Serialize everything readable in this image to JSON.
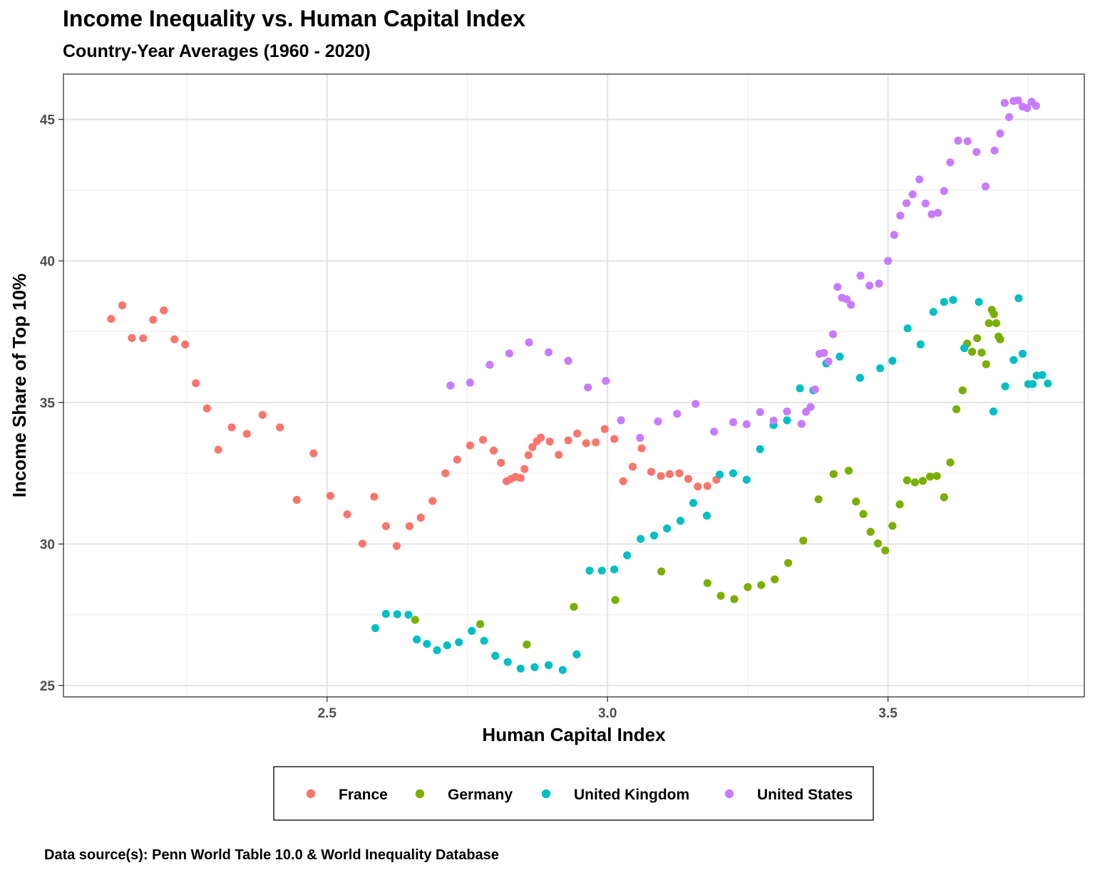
{
  "chart_data": {
    "type": "scatter",
    "title": "Income Inequality vs. Human Capital Index",
    "subtitle": "Country-Year Averages (1960 - 2020)",
    "xlabel": "Human Capital Index",
    "ylabel": "Income Share of Top 10%",
    "xlim": [
      2.03,
      3.85
    ],
    "ylim": [
      24.6,
      46.6
    ],
    "x_ticks": [
      "2.5",
      "3.0",
      "3.5"
    ],
    "y_ticks": [
      "25",
      "30",
      "35",
      "40",
      "45"
    ],
    "grid": true,
    "legend_position": "bottom",
    "caption": "Data source(s): Penn World Table 10.0 & World Inequality Database",
    "series": [
      {
        "name": "France",
        "color": "#F8766D",
        "points": [
          [
            2.115,
            37.95
          ],
          [
            2.135,
            38.43
          ],
          [
            2.152,
            37.28
          ],
          [
            2.172,
            37.27
          ],
          [
            2.19,
            37.92
          ],
          [
            2.209,
            38.25
          ],
          [
            2.228,
            37.23
          ],
          [
            2.247,
            37.05
          ],
          [
            2.266,
            35.68
          ],
          [
            2.286,
            34.79
          ],
          [
            2.306,
            33.33
          ],
          [
            2.33,
            34.12
          ],
          [
            2.357,
            33.89
          ],
          [
            2.385,
            34.56
          ],
          [
            2.416,
            34.12
          ],
          [
            2.446,
            31.56
          ],
          [
            2.476,
            33.2
          ],
          [
            2.506,
            31.7
          ],
          [
            2.536,
            31.05
          ],
          [
            2.563,
            30.01
          ],
          [
            2.584,
            31.67
          ],
          [
            2.605,
            30.63
          ],
          [
            2.624,
            29.93
          ],
          [
            2.647,
            30.63
          ],
          [
            2.667,
            30.93
          ],
          [
            2.688,
            31.52
          ],
          [
            2.711,
            32.5
          ],
          [
            2.732,
            32.98
          ],
          [
            2.755,
            33.48
          ],
          [
            2.778,
            33.68
          ],
          [
            2.797,
            33.3
          ],
          [
            2.81,
            32.87
          ],
          [
            2.82,
            32.22
          ],
          [
            2.828,
            32.3
          ],
          [
            2.836,
            32.37
          ],
          [
            2.845,
            32.33
          ],
          [
            2.852,
            32.65
          ],
          [
            2.859,
            33.14
          ],
          [
            2.866,
            33.42
          ],
          [
            2.874,
            33.63
          ],
          [
            2.881,
            33.76
          ],
          [
            2.897,
            33.62
          ],
          [
            2.913,
            33.15
          ],
          [
            2.93,
            33.66
          ],
          [
            2.946,
            33.9
          ],
          [
            2.962,
            33.56
          ],
          [
            2.979,
            33.59
          ],
          [
            2.995,
            34.06
          ],
          [
            3.012,
            33.71
          ],
          [
            3.028,
            32.22
          ],
          [
            3.045,
            32.73
          ],
          [
            3.061,
            33.38
          ],
          [
            3.078,
            32.55
          ],
          [
            3.095,
            32.4
          ],
          [
            3.111,
            32.47
          ],
          [
            3.128,
            32.5
          ],
          [
            3.144,
            32.3
          ],
          [
            3.161,
            32.03
          ],
          [
            3.178,
            32.05
          ],
          [
            3.194,
            32.27
          ]
        ]
      },
      {
        "name": "Germany",
        "color": "#7CAE00",
        "points": [
          [
            2.657,
            27.32
          ],
          [
            2.773,
            27.17
          ],
          [
            2.856,
            26.45
          ],
          [
            2.94,
            27.78
          ],
          [
            3.014,
            28.02
          ],
          [
            3.096,
            29.03
          ],
          [
            3.178,
            28.62
          ],
          [
            3.202,
            28.17
          ],
          [
            3.226,
            28.05
          ],
          [
            3.25,
            28.48
          ],
          [
            3.274,
            28.55
          ],
          [
            3.298,
            28.75
          ],
          [
            3.322,
            29.33
          ],
          [
            3.349,
            30.12
          ],
          [
            3.376,
            31.58
          ],
          [
            3.403,
            32.47
          ],
          [
            3.43,
            32.59
          ],
          [
            3.443,
            31.5
          ],
          [
            3.456,
            31.06
          ],
          [
            3.469,
            30.43
          ],
          [
            3.482,
            30.02
          ],
          [
            3.495,
            29.77
          ],
          [
            3.508,
            30.64
          ],
          [
            3.521,
            31.4
          ],
          [
            3.534,
            32.25
          ],
          [
            3.548,
            32.18
          ],
          [
            3.562,
            32.23
          ],
          [
            3.575,
            32.38
          ],
          [
            3.587,
            32.4
          ],
          [
            3.6,
            31.65
          ],
          [
            3.611,
            32.88
          ],
          [
            3.622,
            34.76
          ],
          [
            3.633,
            35.43
          ],
          [
            3.641,
            37.08
          ],
          [
            3.65,
            36.79
          ],
          [
            3.659,
            37.27
          ],
          [
            3.667,
            36.76
          ],
          [
            3.675,
            36.35
          ],
          [
            3.68,
            37.8
          ],
          [
            3.685,
            38.27
          ],
          [
            3.689,
            38.12
          ],
          [
            3.693,
            37.8
          ],
          [
            3.697,
            37.33
          ],
          [
            3.7,
            37.23
          ]
        ]
      },
      {
        "name": "United Kingdom",
        "color": "#00BFC4",
        "points": [
          [
            2.586,
            27.03
          ],
          [
            2.605,
            27.53
          ],
          [
            2.625,
            27.52
          ],
          [
            2.645,
            27.5
          ],
          [
            2.66,
            26.63
          ],
          [
            2.678,
            26.47
          ],
          [
            2.696,
            26.25
          ],
          [
            2.714,
            26.42
          ],
          [
            2.735,
            26.53
          ],
          [
            2.758,
            26.93
          ],
          [
            2.78,
            26.58
          ],
          [
            2.8,
            26.05
          ],
          [
            2.822,
            25.83
          ],
          [
            2.845,
            25.6
          ],
          [
            2.87,
            25.65
          ],
          [
            2.895,
            25.72
          ],
          [
            2.92,
            25.55
          ],
          [
            2.945,
            26.1
          ],
          [
            2.968,
            29.06
          ],
          [
            2.99,
            29.06
          ],
          [
            3.012,
            29.1
          ],
          [
            3.035,
            29.6
          ],
          [
            3.059,
            30.18
          ],
          [
            3.083,
            30.3
          ],
          [
            3.106,
            30.55
          ],
          [
            3.13,
            30.82
          ],
          [
            3.153,
            31.45
          ],
          [
            3.177,
            31.0
          ],
          [
            3.2,
            32.45
          ],
          [
            3.224,
            32.5
          ],
          [
            3.248,
            32.27
          ],
          [
            3.272,
            33.35
          ],
          [
            3.296,
            34.2
          ],
          [
            3.32,
            34.37
          ],
          [
            3.343,
            35.5
          ],
          [
            3.367,
            35.43
          ],
          [
            3.39,
            36.38
          ],
          [
            3.414,
            36.62
          ],
          [
            3.45,
            35.87
          ],
          [
            3.486,
            36.21
          ],
          [
            3.508,
            36.47
          ],
          [
            3.535,
            37.62
          ],
          [
            3.558,
            37.05
          ],
          [
            3.581,
            38.2
          ],
          [
            3.6,
            38.55
          ],
          [
            3.616,
            38.62
          ],
          [
            3.636,
            36.92
          ],
          [
            3.662,
            38.55
          ],
          [
            3.688,
            34.68
          ],
          [
            3.709,
            35.57
          ],
          [
            3.724,
            36.5
          ],
          [
            3.733,
            38.68
          ],
          [
            3.74,
            36.72
          ],
          [
            3.75,
            35.65
          ],
          [
            3.758,
            35.65
          ],
          [
            3.765,
            35.95
          ],
          [
            3.775,
            35.97
          ],
          [
            3.785,
            35.67
          ]
        ]
      },
      {
        "name": "United States",
        "color": "#C77CFF",
        "points": [
          [
            2.72,
            35.6
          ],
          [
            2.755,
            35.7
          ],
          [
            2.79,
            36.33
          ],
          [
            2.825,
            36.73
          ],
          [
            2.86,
            37.12
          ],
          [
            2.895,
            36.77
          ],
          [
            2.93,
            36.47
          ],
          [
            2.965,
            35.53
          ],
          [
            2.997,
            35.76
          ],
          [
            3.024,
            34.37
          ],
          [
            3.058,
            33.75
          ],
          [
            3.09,
            34.33
          ],
          [
            3.124,
            34.6
          ],
          [
            3.157,
            34.95
          ],
          [
            3.19,
            33.97
          ],
          [
            3.224,
            34.3
          ],
          [
            3.248,
            34.23
          ],
          [
            3.272,
            34.66
          ],
          [
            3.296,
            34.36
          ],
          [
            3.32,
            34.68
          ],
          [
            3.346,
            34.24
          ],
          [
            3.354,
            34.67
          ],
          [
            3.362,
            34.84
          ],
          [
            3.37,
            35.46
          ],
          [
            3.378,
            36.72
          ],
          [
            3.386,
            36.75
          ],
          [
            3.394,
            36.45
          ],
          [
            3.402,
            37.41
          ],
          [
            3.41,
            39.08
          ],
          [
            3.418,
            38.7
          ],
          [
            3.426,
            38.65
          ],
          [
            3.434,
            38.45
          ],
          [
            3.451,
            39.48
          ],
          [
            3.467,
            39.13
          ],
          [
            3.484,
            39.2
          ],
          [
            3.5,
            40.0
          ],
          [
            3.511,
            40.92
          ],
          [
            3.522,
            41.6
          ],
          [
            3.533,
            42.04
          ],
          [
            3.544,
            42.35
          ],
          [
            3.556,
            42.88
          ],
          [
            3.567,
            42.03
          ],
          [
            3.578,
            41.65
          ],
          [
            3.589,
            41.7
          ],
          [
            3.6,
            42.47
          ],
          [
            3.611,
            43.48
          ],
          [
            3.625,
            44.25
          ],
          [
            3.642,
            44.23
          ],
          [
            3.658,
            43.85
          ],
          [
            3.674,
            42.63
          ],
          [
            3.69,
            43.9
          ],
          [
            3.7,
            44.5
          ],
          [
            3.708,
            45.58
          ],
          [
            3.716,
            45.08
          ],
          [
            3.724,
            45.65
          ],
          [
            3.732,
            45.67
          ],
          [
            3.74,
            45.45
          ],
          [
            3.748,
            45.4
          ],
          [
            3.756,
            45.62
          ],
          [
            3.764,
            45.48
          ]
        ]
      }
    ]
  }
}
